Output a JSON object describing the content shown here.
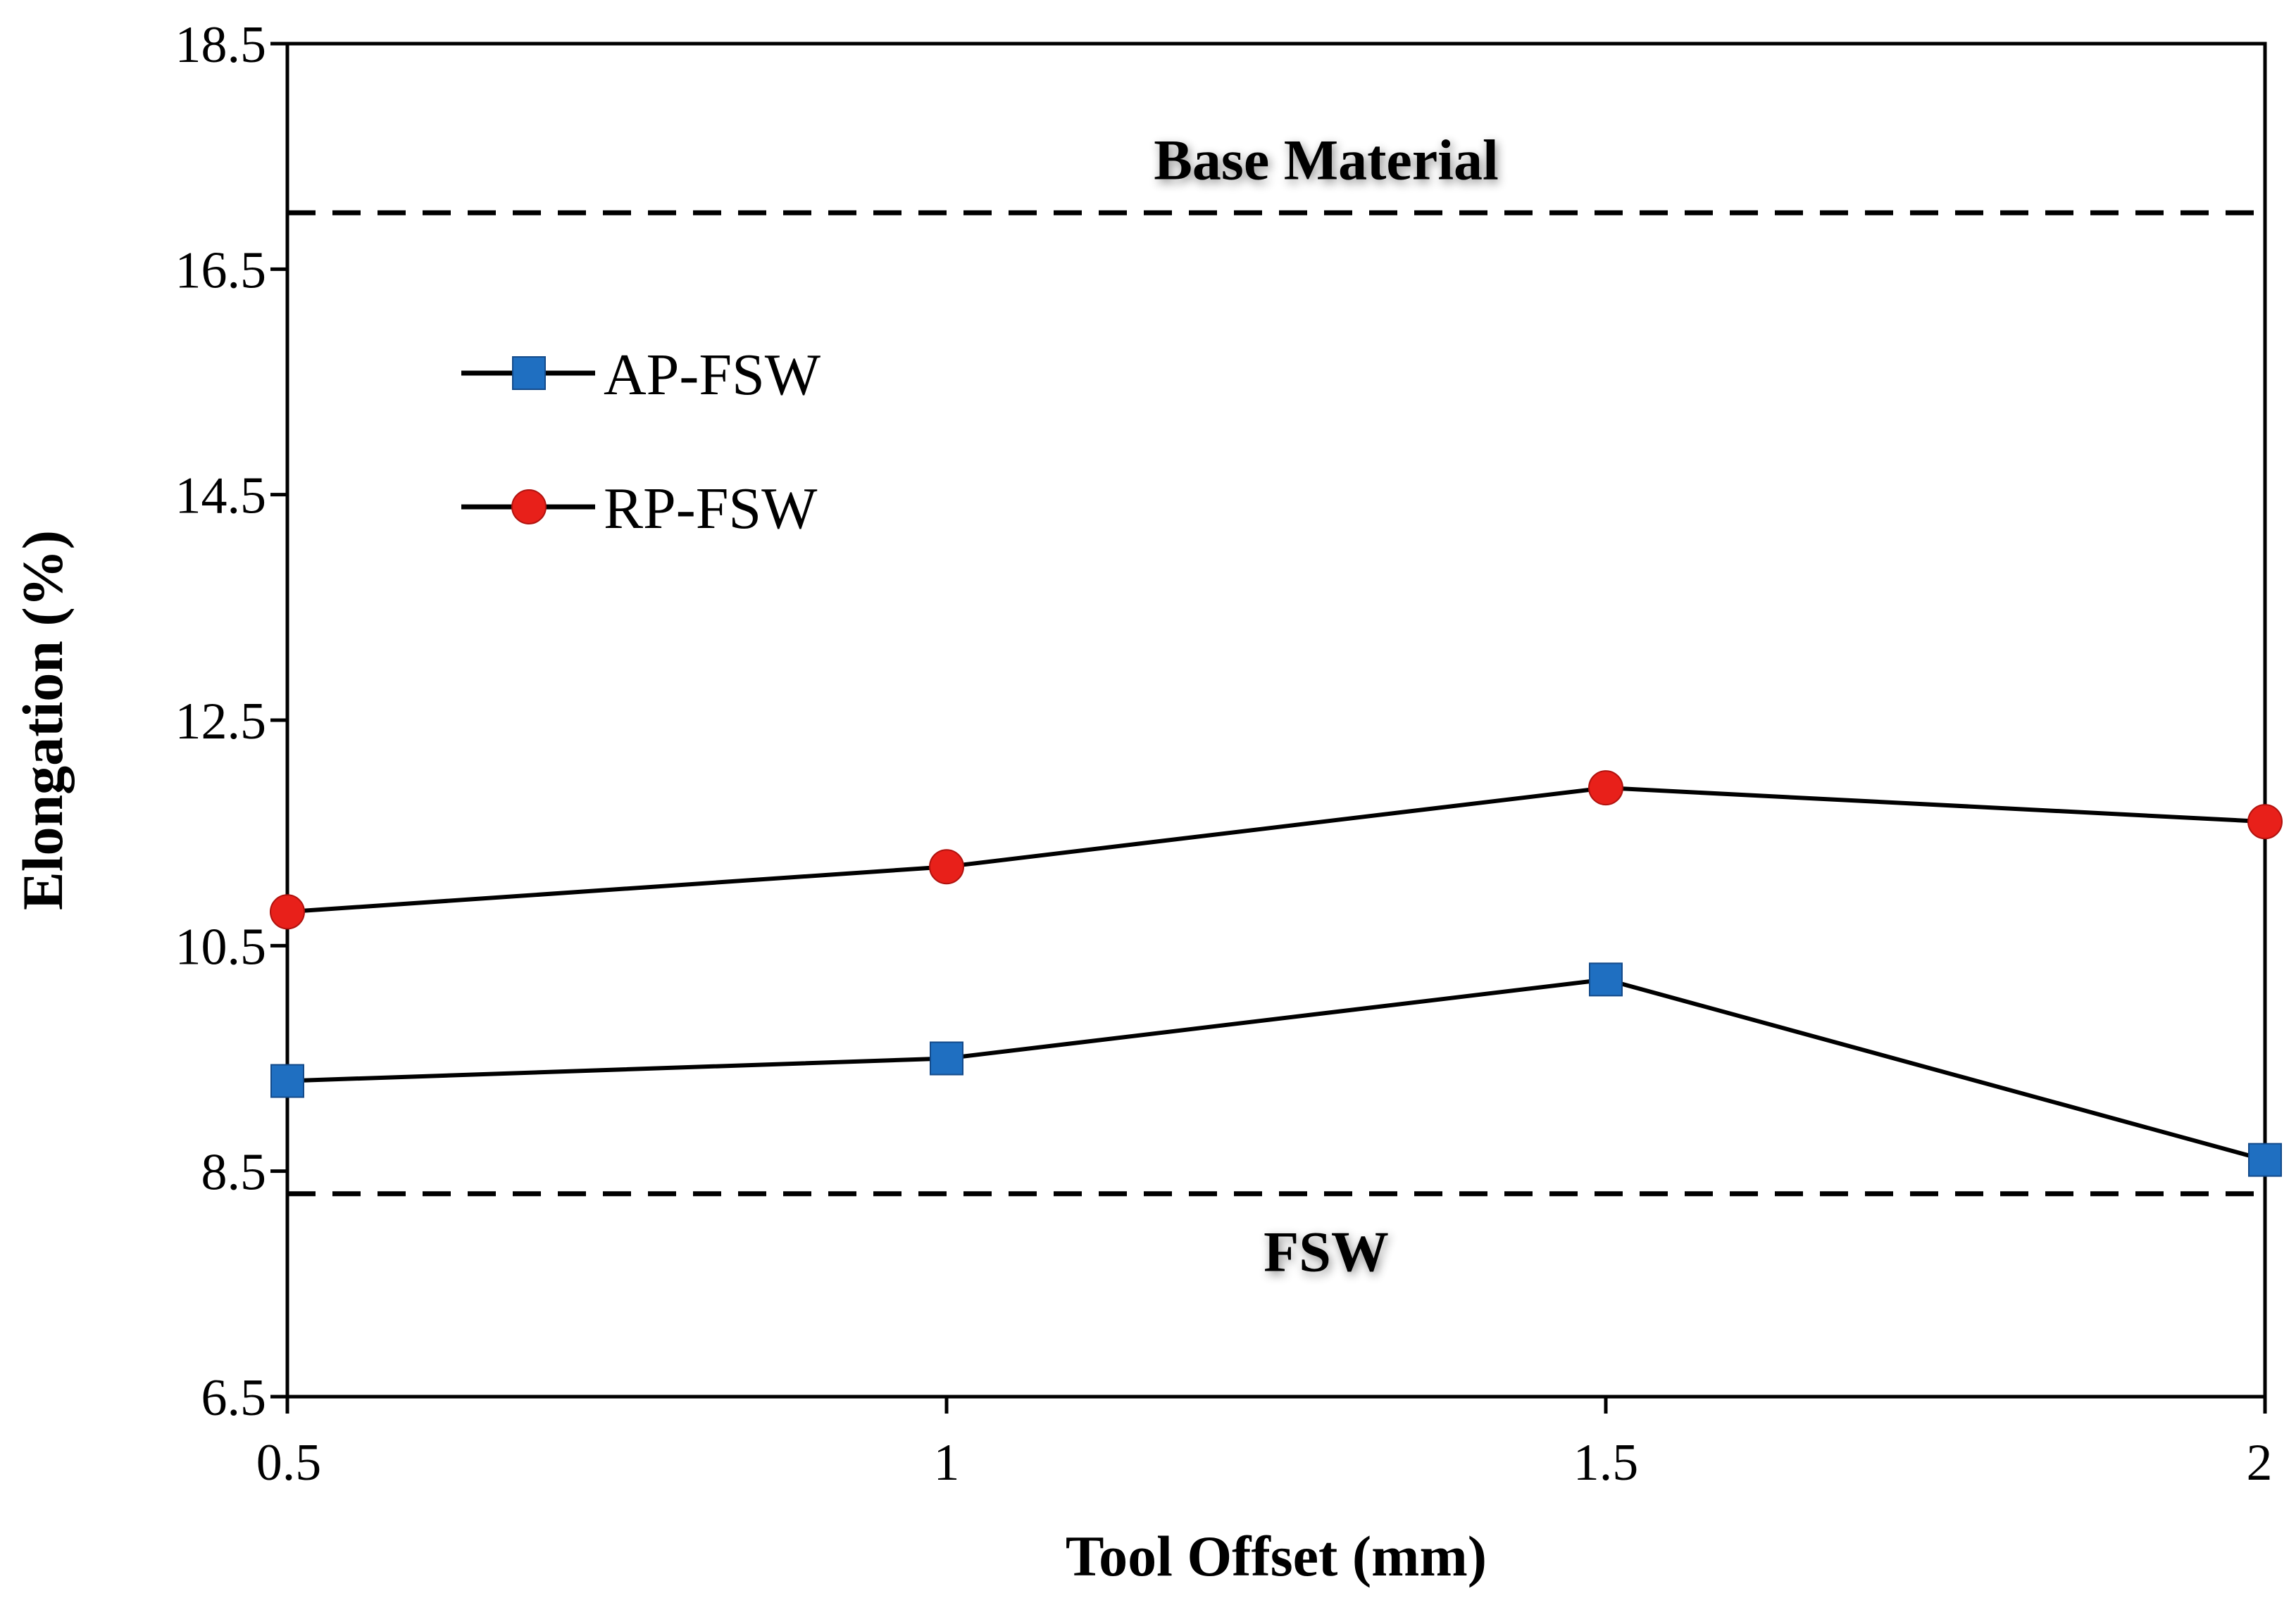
{
  "chart_data": {
    "type": "line",
    "title": "",
    "xlabel": "Tool Offset (mm)",
    "ylabel": "Elongation (%)",
    "x": [
      0.5,
      1,
      1.5,
      2
    ],
    "x_tick_labels": [
      "0.5",
      "1",
      "1.5",
      "2"
    ],
    "xlim": [
      0.5,
      2
    ],
    "ylim": [
      6.5,
      18.5
    ],
    "y_ticks": [
      6.5,
      8.5,
      10.5,
      12.5,
      14.5,
      16.5,
      18.5
    ],
    "y_tick_labels": [
      "6.5",
      "8.5",
      "10.5",
      "12.5",
      "14.5",
      "16.5",
      "18.5"
    ],
    "grid": false,
    "legend_position": "upper-left",
    "series": [
      {
        "name": "AP-FSW",
        "values": [
          9.3,
          9.5,
          10.2,
          8.6
        ],
        "marker": "square",
        "marker_color": "#1F6FC1",
        "line_color": "#000000"
      },
      {
        "name": "RP-FSW",
        "values": [
          10.8,
          11.2,
          11.9,
          11.6
        ],
        "marker": "circle",
        "marker_color": "#E8201A",
        "line_color": "#000000"
      }
    ],
    "reference_lines": [
      {
        "label": "Base Material",
        "value": 17.0,
        "label_position": "above"
      },
      {
        "label": "FSW",
        "value": 8.3,
        "label_position": "below"
      }
    ]
  }
}
